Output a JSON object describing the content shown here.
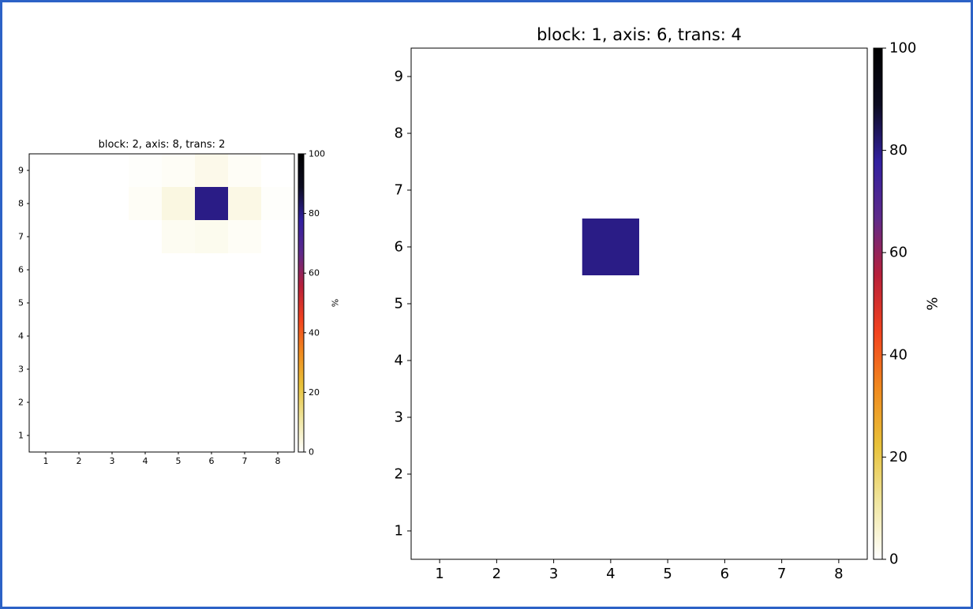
{
  "frame_color": "#2c62c6",
  "colormap": [
    "#ffffff",
    "#f0e6a0",
    "#e8c23a",
    "#f08a1e",
    "#f2421e",
    "#b8203a",
    "#5e2a8a",
    "#3220a0",
    "#0c0c20",
    "#000000"
  ],
  "chart_data": [
    {
      "type": "heatmap",
      "title": "block: 2, axis: 8, trans: 2",
      "xlabel": "",
      "ylabel": "",
      "x_ticks": [
        "1",
        "2",
        "3",
        "4",
        "5",
        "6",
        "7",
        "8"
      ],
      "y_ticks": [
        "1",
        "2",
        "3",
        "4",
        "5",
        "6",
        "7",
        "8",
        "9"
      ],
      "xlim": [
        0.5,
        8.5
      ],
      "ylim": [
        0.5,
        9.5
      ],
      "colorbar": {
        "label": "%",
        "range": [
          0,
          100
        ],
        "ticks": [
          "0",
          "20",
          "40",
          "60",
          "80",
          "100"
        ]
      },
      "cells": [
        {
          "x": 4,
          "y": 9,
          "value": 0.5
        },
        {
          "x": 5,
          "y": 9,
          "value": 1.0
        },
        {
          "x": 6,
          "y": 9,
          "value": 2.5
        },
        {
          "x": 7,
          "y": 9,
          "value": 1.0
        },
        {
          "x": 4,
          "y": 8,
          "value": 1.0
        },
        {
          "x": 5,
          "y": 8,
          "value": 3.5
        },
        {
          "x": 6,
          "y": 8,
          "value": 80.0
        },
        {
          "x": 7,
          "y": 8,
          "value": 3.0
        },
        {
          "x": 8,
          "y": 8,
          "value": 0.5
        },
        {
          "x": 5,
          "y": 7,
          "value": 1.5
        },
        {
          "x": 6,
          "y": 7,
          "value": 2.0
        },
        {
          "x": 7,
          "y": 7,
          "value": 1.0
        }
      ]
    },
    {
      "type": "heatmap",
      "title": "block: 1, axis: 6, trans: 4",
      "xlabel": "",
      "ylabel": "",
      "x_ticks": [
        "1",
        "2",
        "3",
        "4",
        "5",
        "6",
        "7",
        "8"
      ],
      "y_ticks": [
        "1",
        "2",
        "3",
        "4",
        "5",
        "6",
        "7",
        "8",
        "9"
      ],
      "xlim": [
        0.5,
        8.5
      ],
      "ylim": [
        0.5,
        9.5
      ],
      "colorbar": {
        "label": "%",
        "range": [
          0,
          100
        ],
        "ticks": [
          "0",
          "20",
          "40",
          "60",
          "80",
          "100"
        ]
      },
      "cells": [
        {
          "x": 4,
          "y": 6,
          "value": 80.0
        }
      ]
    }
  ]
}
